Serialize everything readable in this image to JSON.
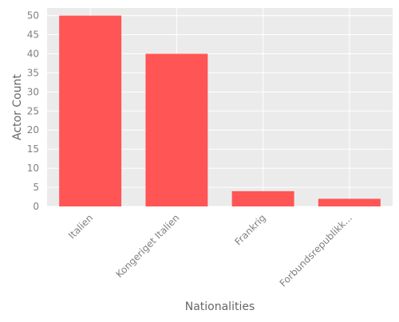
{
  "chart_data": {
    "type": "bar",
    "categories": [
      "Italien",
      "Kongeriget Italien",
      "Frankrig",
      "Forbundsrepublikk..."
    ],
    "values": [
      50,
      40,
      4,
      2
    ],
    "xlabel": "Nationalities",
    "ylabel": "Actor Count",
    "ylim": [
      0,
      52
    ],
    "yticks": [
      0,
      5,
      10,
      15,
      20,
      25,
      30,
      35,
      40,
      45,
      50
    ],
    "grid": true,
    "legend": "none"
  },
  "colors": {
    "bar": "#ff5555",
    "plot_background": "#ebebeb",
    "gridline": "#ffffff",
    "text": "#808080",
    "axis_title": "#666666"
  }
}
